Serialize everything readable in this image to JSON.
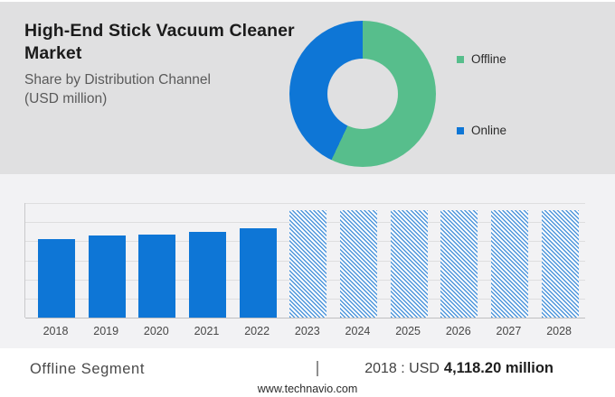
{
  "header": {
    "title_lines": [
      "High-End Stick Vacuum Cleaner",
      "Market"
    ],
    "subtitle_lines": [
      "Share by Distribution Channel",
      "(USD million)"
    ]
  },
  "donut": {
    "type": "donut",
    "segments": [
      {
        "label": "Offline",
        "percent": 57,
        "color": "#57be8c"
      },
      {
        "label": "Online",
        "percent": 43,
        "color": "#0e76d6"
      }
    ]
  },
  "chart_data": {
    "type": "bar",
    "categories": [
      "2018",
      "2019",
      "2020",
      "2021",
      "2022",
      "2023",
      "2024",
      "2025",
      "2026",
      "2027",
      "2028"
    ],
    "series": [
      {
        "name": "Offline Segment",
        "values": [
          4118.2,
          4290,
          4340,
          4500,
          4660,
          5600,
          5600,
          5600,
          5600,
          5600,
          5600
        ]
      }
    ],
    "forecast_start": "2023",
    "ylim": [
      0,
      6000
    ],
    "gridline_step": 1000,
    "grid": true,
    "legend_position": "none",
    "bar_color": "#0e76d6",
    "forecast_hatch_color": "#4f97dc"
  },
  "footer": {
    "segment_label": "Offline Segment",
    "separator": "|",
    "value_prefix": "2018 : USD",
    "value_amount": "4,118.20 million",
    "website": "www.technavio.com"
  }
}
